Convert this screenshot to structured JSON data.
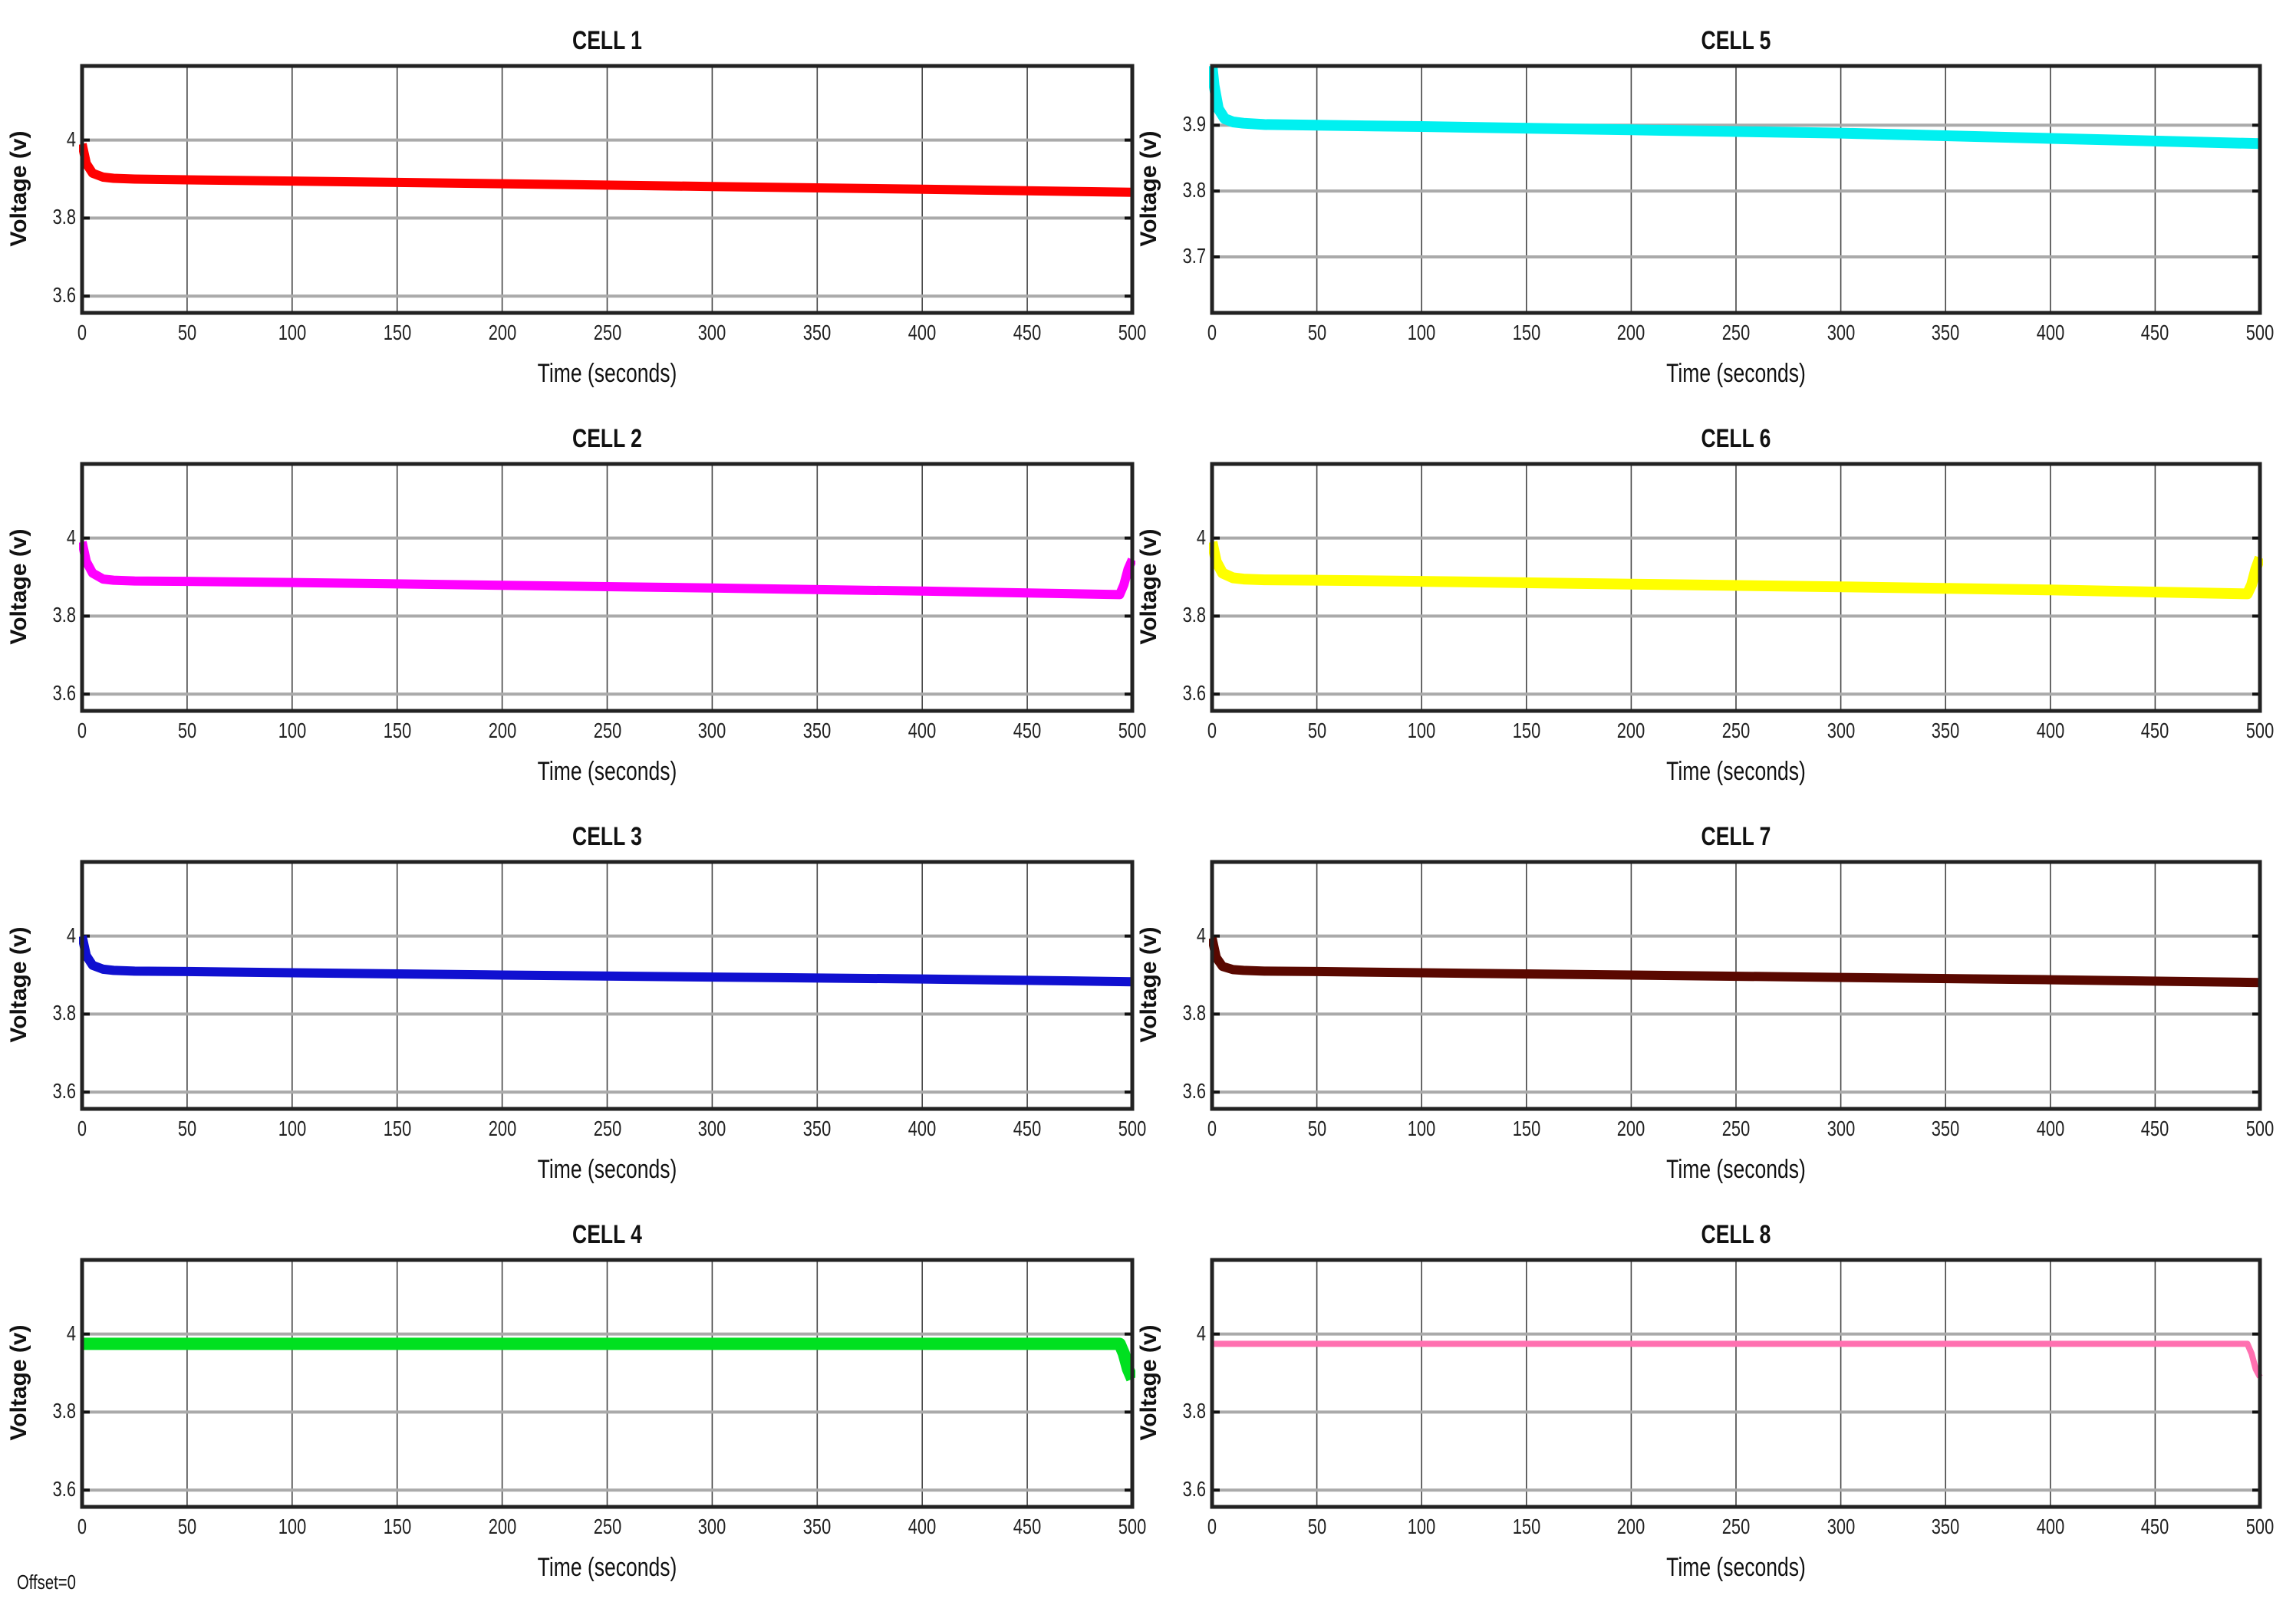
{
  "figure": {
    "offset_label": "Offset=0"
  },
  "chart_data": [
    {
      "type": "line",
      "title": "CELL 1",
      "xlabel": "Time (seconds)",
      "ylabel": "Voltage (v)",
      "xlim": [
        0,
        500
      ],
      "ylim": [
        3.557,
        4.19
      ],
      "xticks": [
        0,
        50,
        100,
        150,
        200,
        250,
        300,
        350,
        400,
        450,
        500
      ],
      "yticks": [
        3.6,
        3.8,
        4
      ],
      "ytick_labels": [
        "3.6",
        "3.8",
        "4"
      ],
      "grid": true,
      "color": "#ff0000",
      "line_width": 12,
      "x": [
        0,
        2,
        5,
        10,
        15,
        25,
        50,
        100,
        200,
        300,
        400,
        500
      ],
      "y": [
        3.99,
        3.94,
        3.915,
        3.905,
        3.902,
        3.9,
        3.898,
        3.895,
        3.888,
        3.881,
        3.874,
        3.866
      ]
    },
    {
      "type": "line",
      "title": "CELL 2",
      "xlabel": "Time (seconds)",
      "ylabel": "Voltage (v)",
      "xlim": [
        0,
        500
      ],
      "ylim": [
        3.557,
        4.19
      ],
      "xticks": [
        0,
        50,
        100,
        150,
        200,
        250,
        300,
        350,
        400,
        450,
        500
      ],
      "yticks": [
        3.6,
        3.8,
        4
      ],
      "ytick_labels": [
        "3.6",
        "3.8",
        "4"
      ],
      "grid": true,
      "color": "#ff00ff",
      "line_width": 12,
      "x": [
        0,
        2,
        5,
        10,
        15,
        25,
        50,
        100,
        200,
        300,
        400,
        494,
        496,
        498,
        500
      ],
      "y": [
        3.99,
        3.94,
        3.91,
        3.895,
        3.892,
        3.89,
        3.889,
        3.886,
        3.879,
        3.872,
        3.864,
        3.855,
        3.88,
        3.92,
        3.945
      ]
    },
    {
      "type": "line",
      "title": "CELL 3",
      "xlabel": "Time (seconds)",
      "ylabel": "Voltage (v)",
      "xlim": [
        0,
        500
      ],
      "ylim": [
        3.557,
        4.19
      ],
      "xticks": [
        0,
        50,
        100,
        150,
        200,
        250,
        300,
        350,
        400,
        450,
        500
      ],
      "yticks": [
        3.6,
        3.8,
        4
      ],
      "ytick_labels": [
        "3.6",
        "3.8",
        "4"
      ],
      "grid": true,
      "color": "#1010d0",
      "line_width": 12,
      "x": [
        0,
        2,
        5,
        10,
        15,
        25,
        50,
        100,
        200,
        300,
        400,
        500
      ],
      "y": [
        4.0,
        3.95,
        3.925,
        3.915,
        3.912,
        3.91,
        3.909,
        3.906,
        3.9,
        3.895,
        3.89,
        3.883
      ]
    },
    {
      "type": "line",
      "title": "CELL 4",
      "xlabel": "Time (seconds)",
      "ylabel": "Voltage (v)",
      "xlim": [
        0,
        500
      ],
      "ylim": [
        3.557,
        4.19
      ],
      "xticks": [
        0,
        50,
        100,
        150,
        200,
        250,
        300,
        350,
        400,
        450,
        500
      ],
      "yticks": [
        3.6,
        3.8,
        4
      ],
      "ytick_labels": [
        "3.6",
        "3.8",
        "4"
      ],
      "grid": true,
      "color": "#00e020",
      "line_width": 16,
      "x": [
        0,
        100,
        200,
        300,
        400,
        494,
        496,
        498,
        500
      ],
      "y": [
        3.975,
        3.975,
        3.975,
        3.975,
        3.975,
        3.975,
        3.95,
        3.91,
        3.885
      ]
    },
    {
      "type": "line",
      "title": "CELL 5",
      "xlabel": "Time (seconds)",
      "ylabel": "Voltage (v)",
      "xlim": [
        0,
        500
      ],
      "ylim": [
        3.615,
        3.99
      ],
      "xticks": [
        0,
        50,
        100,
        150,
        200,
        250,
        300,
        350,
        400,
        450,
        500
      ],
      "yticks": [
        3.7,
        3.8,
        3.9
      ],
      "ytick_labels": [
        "3.7",
        "3.8",
        "3.9"
      ],
      "grid": true,
      "color": "#00f0f0",
      "line_width": 14,
      "x": [
        0,
        1,
        3,
        6,
        10,
        15,
        25,
        50,
        100,
        200,
        300,
        400,
        500
      ],
      "y": [
        3.99,
        3.96,
        3.925,
        3.91,
        3.905,
        3.903,
        3.901,
        3.9,
        3.898,
        3.893,
        3.888,
        3.88,
        3.872
      ]
    },
    {
      "type": "line",
      "title": "CELL 6",
      "xlabel": "Time (seconds)",
      "ylabel": "Voltage (v)",
      "xlim": [
        0,
        500
      ],
      "ylim": [
        3.557,
        4.19
      ],
      "xticks": [
        0,
        50,
        100,
        150,
        200,
        250,
        300,
        350,
        400,
        450,
        500
      ],
      "yticks": [
        3.6,
        3.8,
        4
      ],
      "ytick_labels": [
        "3.6",
        "3.8",
        "4"
      ],
      "grid": true,
      "color": "#ffff00",
      "line_width": 14,
      "x": [
        0,
        2,
        5,
        10,
        15,
        25,
        50,
        100,
        200,
        300,
        400,
        494,
        496,
        498,
        500
      ],
      "y": [
        3.99,
        3.94,
        3.91,
        3.898,
        3.895,
        3.893,
        3.892,
        3.889,
        3.882,
        3.875,
        3.867,
        3.857,
        3.88,
        3.92,
        3.95
      ]
    },
    {
      "type": "line",
      "title": "CELL 7",
      "xlabel": "Time (seconds)",
      "ylabel": "Voltage (v)",
      "xlim": [
        0,
        500
      ],
      "ylim": [
        3.557,
        4.19
      ],
      "xticks": [
        0,
        50,
        100,
        150,
        200,
        250,
        300,
        350,
        400,
        450,
        500
      ],
      "yticks": [
        3.6,
        3.8,
        4
      ],
      "ytick_labels": [
        "3.6",
        "3.8",
        "4"
      ],
      "grid": true,
      "color": "#5a0800",
      "line_width": 12,
      "x": [
        0,
        2,
        5,
        10,
        15,
        25,
        50,
        100,
        200,
        300,
        400,
        500
      ],
      "y": [
        3.995,
        3.945,
        3.922,
        3.914,
        3.912,
        3.91,
        3.909,
        3.906,
        3.9,
        3.894,
        3.888,
        3.881
      ]
    },
    {
      "type": "line",
      "title": "CELL 8",
      "xlabel": "Time (seconds)",
      "ylabel": "Voltage (v)",
      "xlim": [
        0,
        500
      ],
      "ylim": [
        3.557,
        4.19
      ],
      "xticks": [
        0,
        50,
        100,
        150,
        200,
        250,
        300,
        350,
        400,
        450,
        500
      ],
      "yticks": [
        3.6,
        3.8,
        4
      ],
      "ytick_labels": [
        "3.6",
        "3.8",
        "4"
      ],
      "grid": true,
      "color": "#ff70b0",
      "line_width": 8,
      "x": [
        0,
        100,
        200,
        300,
        400,
        494,
        496,
        498,
        500
      ],
      "y": [
        3.975,
        3.975,
        3.975,
        3.975,
        3.975,
        3.975,
        3.95,
        3.91,
        3.89
      ]
    }
  ]
}
